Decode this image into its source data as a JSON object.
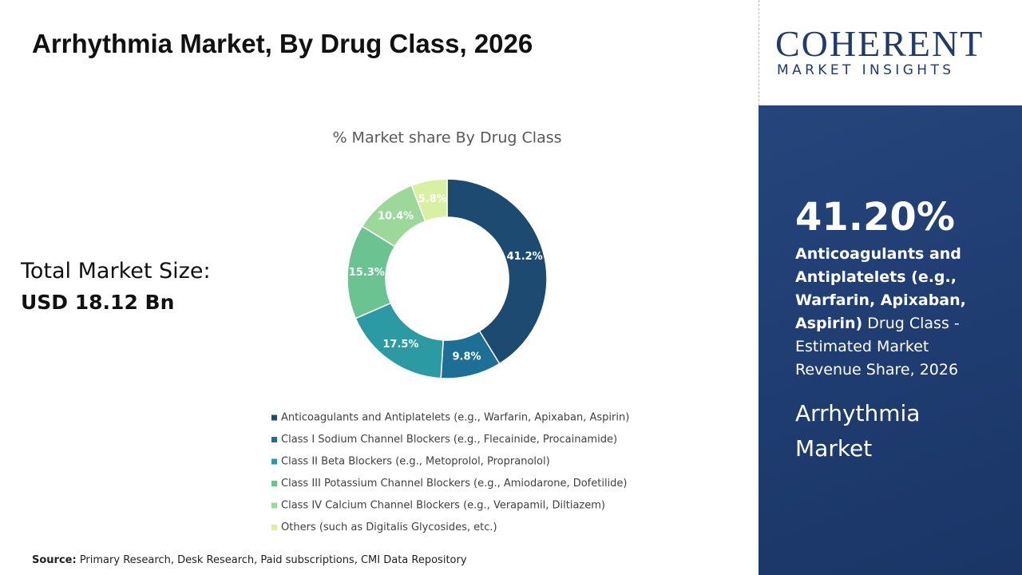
{
  "title": "Arrhythmia Market, By Drug Class, 2026",
  "market_size": {
    "label": "Total Market Size:",
    "value": "USD 18.12 Bn"
  },
  "chart_data": {
    "type": "donut",
    "title": "% Market share By Drug Class",
    "categories": [
      "Anticoagulants and Antiplatelets (e.g., Warfarin, Apixaban, Aspirin)",
      "Class I Sodium Channel Blockers (e.g., Flecainide, Procainamide)",
      "Class II Beta Blockers (e.g., Metoprolol, Propranolol)",
      "Class III Potassium Channel Blockers (e.g., Amiodarone, Dofetilide)",
      "Class IV Calcium Channel Blockers (e.g., Verapamil, Diltiazem)",
      "Others (such as Digitalis Glycosides, etc.)"
    ],
    "values": [
      41.2,
      9.8,
      17.5,
      15.3,
      10.4,
      5.8
    ],
    "value_labels": [
      "41.2%",
      "9.8%",
      "17.5%",
      "15.3%",
      "10.4%",
      "5.8%"
    ],
    "colors": [
      "#1d4a70",
      "#1e6f95",
      "#2b9aa3",
      "#6cc392",
      "#9dd89b",
      "#d9f0a3"
    ]
  },
  "logo": {
    "name": "COHERENT",
    "tagline": "MARKET INSIGHTS"
  },
  "sidebar": {
    "highlight": "41.20%",
    "segment": "Anticoagulants and Antiplatelets (e.g., Warfarin, Apixaban, Aspirin)",
    "description": " Drug Class - Estimated Market Revenue Share, 2026",
    "market": "Arrhythmia Market"
  },
  "source": {
    "label": "Source:",
    "text": " Primary Research, Desk Research, Paid subscriptions, CMI Data Repository"
  }
}
